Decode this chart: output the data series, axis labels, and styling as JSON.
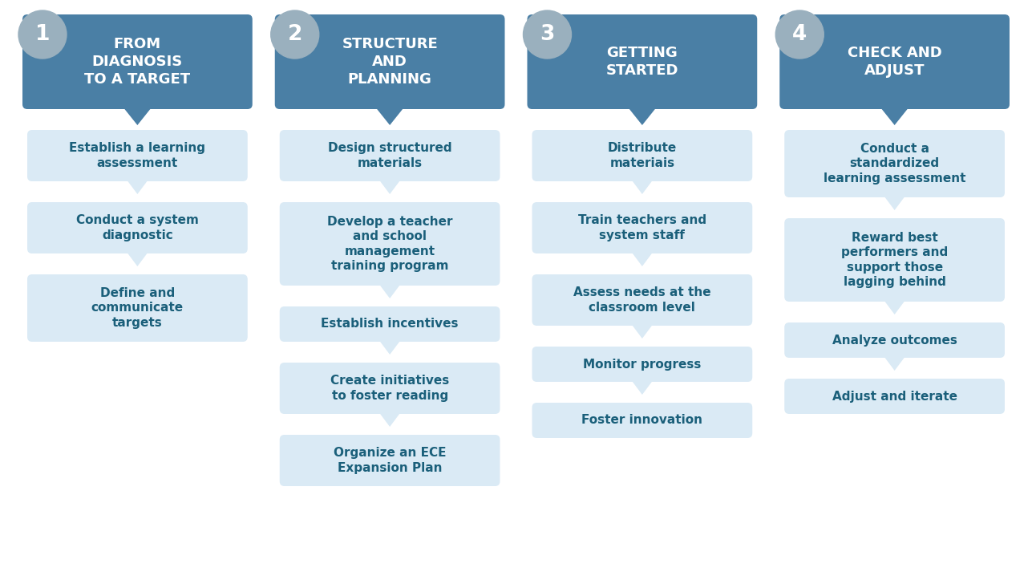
{
  "background_color": "#ffffff",
  "header_bg_color": "#4a7fa5",
  "header_text_color": "#ffffff",
  "circle_color": "#9ab0be",
  "circle_text_color": "#ffffff",
  "box_bg_color": "#daeaf5",
  "box_text_color": "#1a5f7a",
  "fig_width": 12.87,
  "fig_height": 7.28,
  "columns": [
    {
      "number": "1",
      "title": "FROM\nDIAGNOSIS\nTO A TARGET",
      "items": [
        "Establish a learning\nassessment",
        "Conduct a system\ndiagnostic",
        "Define and\ncommunicate\ntargets"
      ]
    },
    {
      "number": "2",
      "title": "STRUCTURE\nAND\nPLANNING",
      "items": [
        "Design structured\nmaterials",
        "Develop a teacher\nand school\nmanagement\ntraining program",
        "Establish incentives",
        "Create initiatives\nto foster reading",
        "Organize an ECE\nExpansion Plan"
      ]
    },
    {
      "number": "3",
      "title": "GETTING\nSTARTED",
      "items": [
        "Distribute\nmateriais",
        "Train teachers and\nsystem staff",
        "Assess needs at the\nclassroom level",
        "Monitor progress",
        "Foster innovation"
      ]
    },
    {
      "number": "4",
      "title": "CHECK AND\nADJUST",
      "items": [
        "Conduct a\nstandardized\nlearning assessment",
        "Reward best\nperformers and\nsupport those\nlagging behind",
        "Analyze outcomes",
        "Adjust and iterate"
      ]
    }
  ]
}
